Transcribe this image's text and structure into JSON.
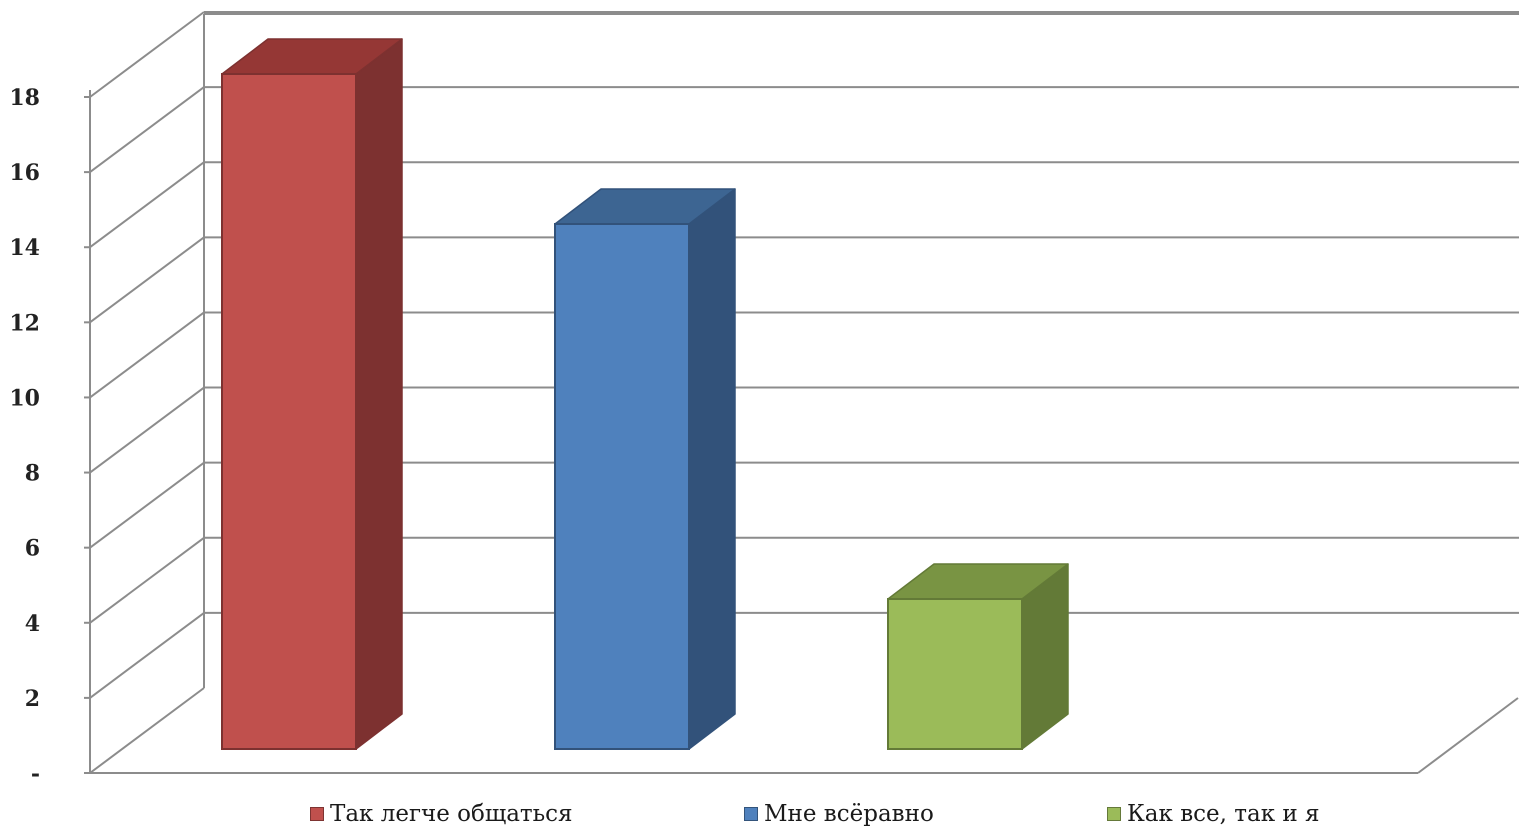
{
  "chart_data": {
    "type": "bar",
    "title": "",
    "xlabel": "",
    "ylabel": "",
    "ylim": [
      0,
      18
    ],
    "y_ticks": [
      "-",
      "2",
      "4",
      "6",
      "8",
      "10",
      "12",
      "14",
      "16",
      "18"
    ],
    "grid": true,
    "three_d": true,
    "legend_position": "bottom",
    "series": [
      {
        "name": "Так легче общаться",
        "value": 18,
        "color": "#c0504d",
        "side_color": "#7d3130",
        "top_color": "#953735"
      },
      {
        "name": "Мне всёравно",
        "value": 14,
        "color": "#4f81bd",
        "side_color": "#32527a",
        "top_color": "#3d6592"
      },
      {
        "name": "Как все, так и я",
        "value": 4,
        "color": "#9bbb59",
        "side_color": "#637a37",
        "top_color": "#799443"
      }
    ]
  }
}
